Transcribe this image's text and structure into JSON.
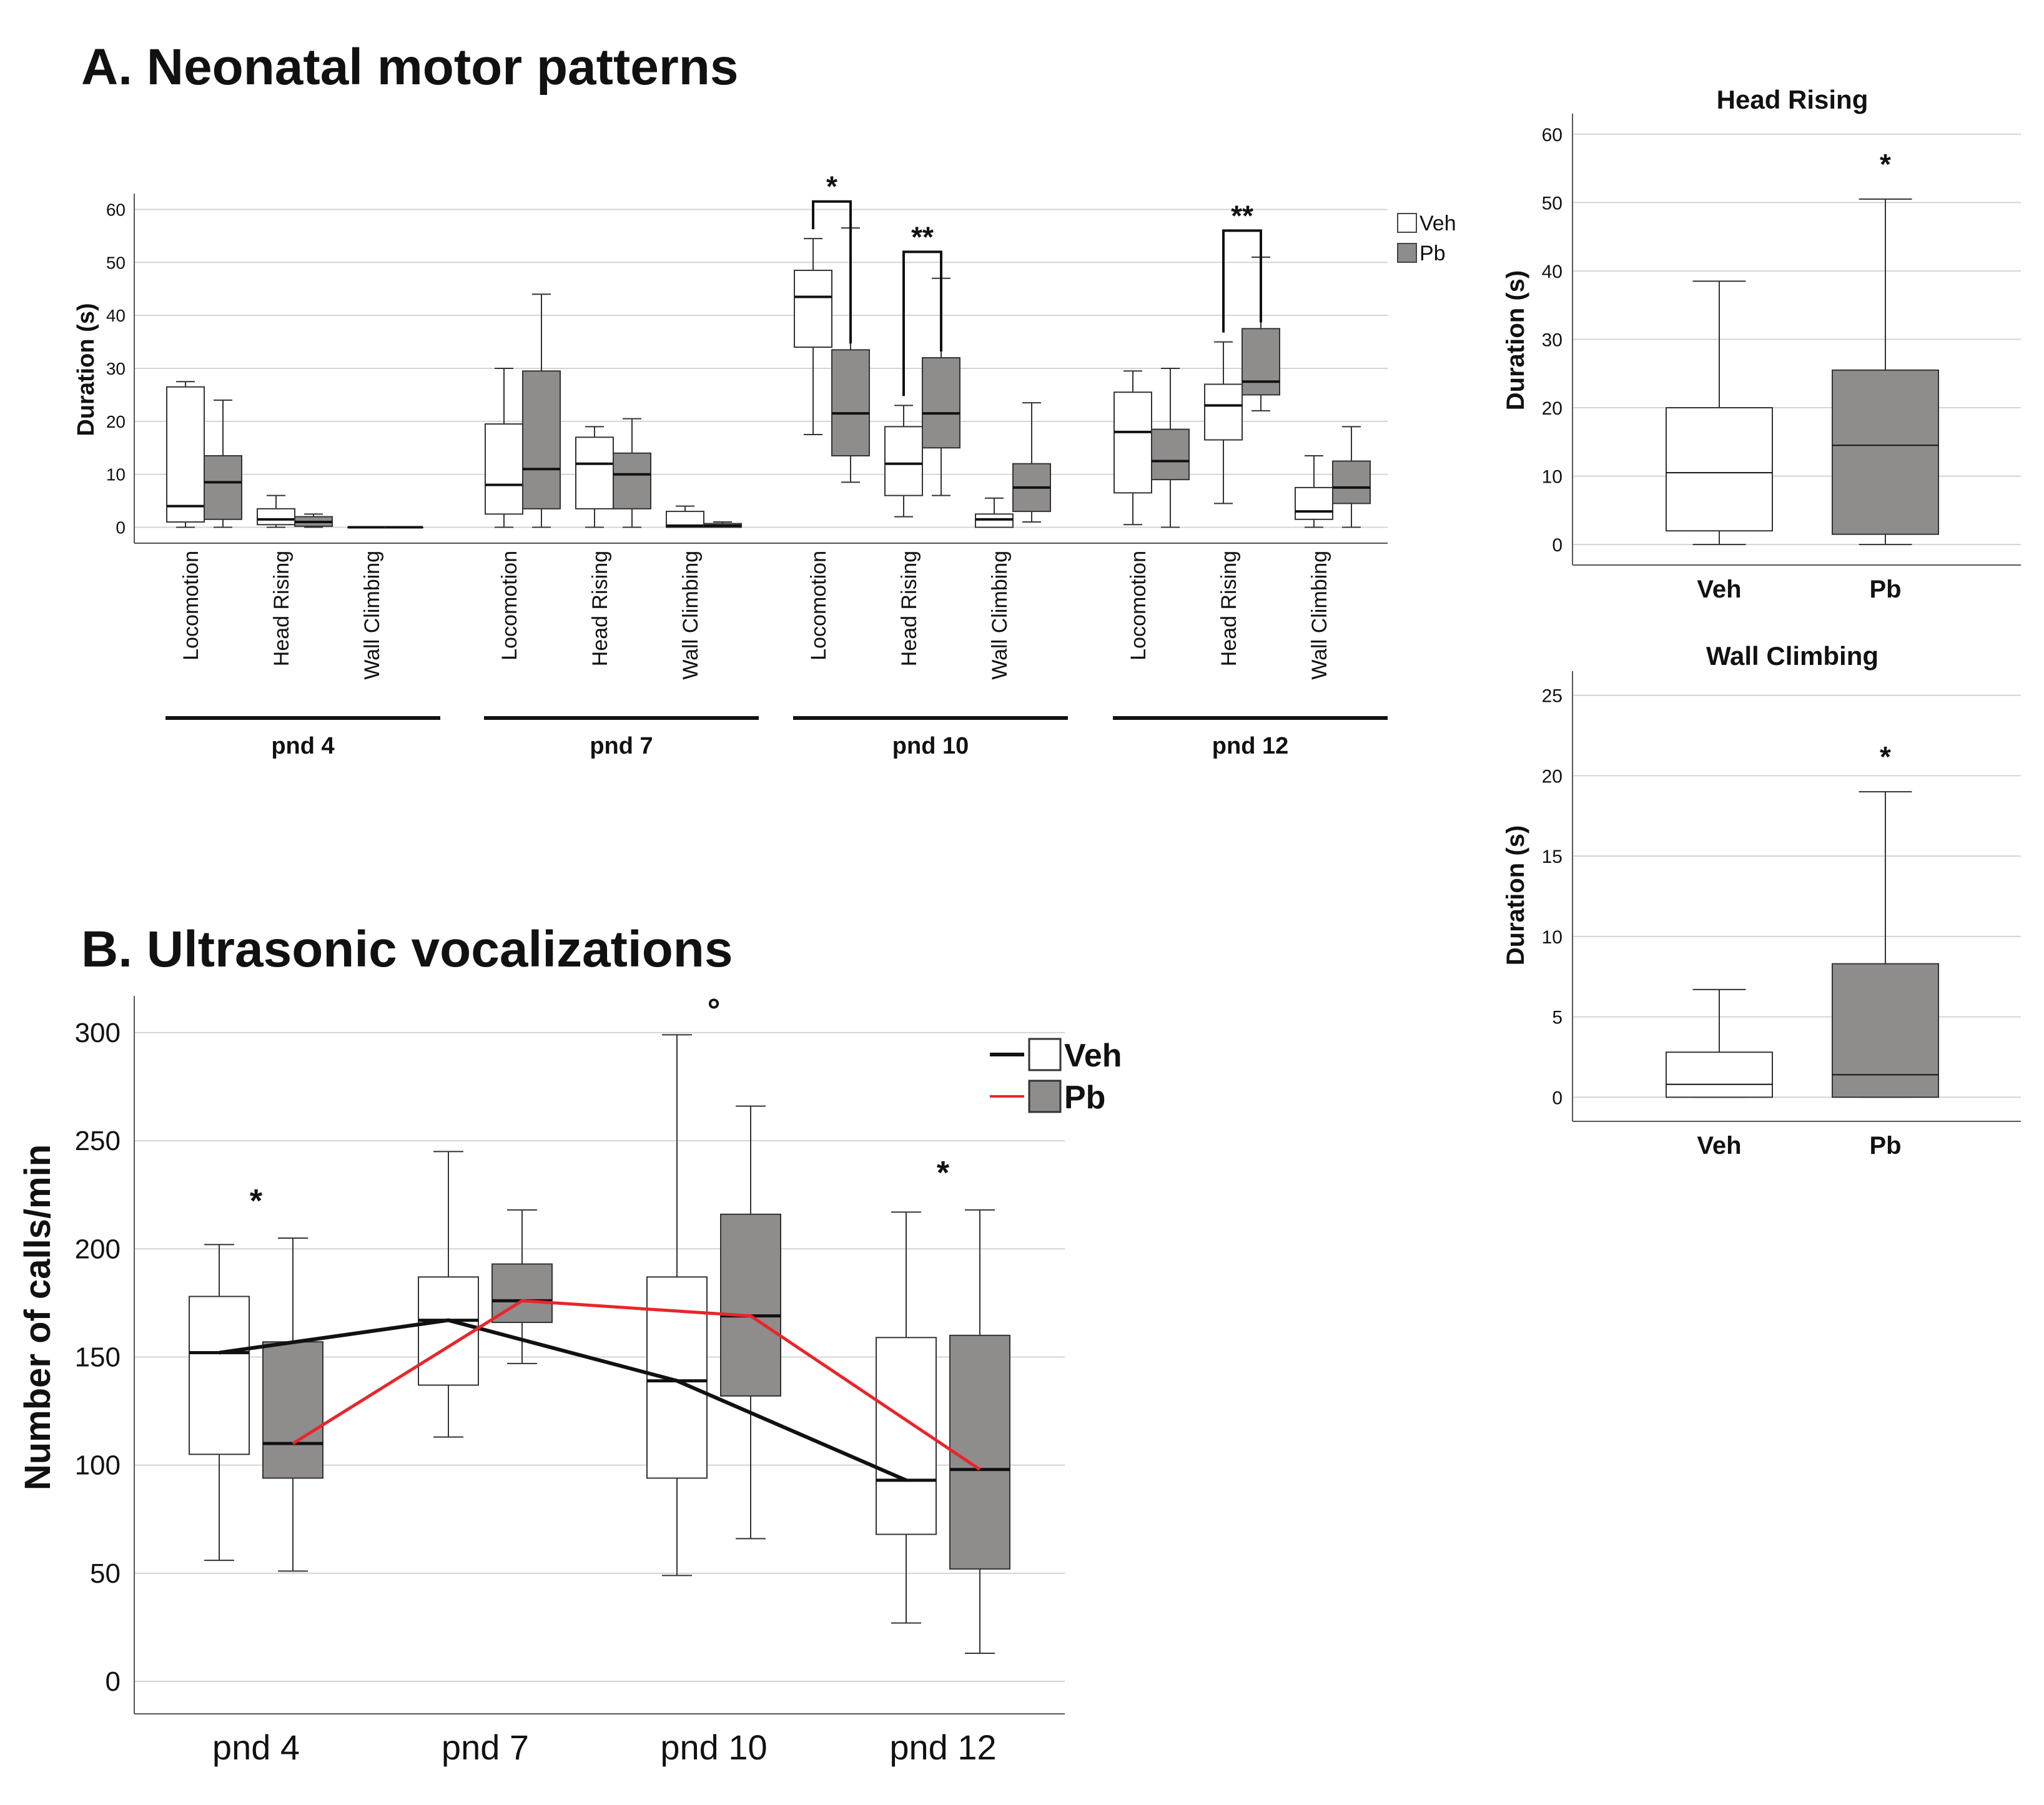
{
  "chart_data": [
    {
      "id": "panelA",
      "type": "boxplot",
      "title": "A. Neonatal motor patterns",
      "ylabel": "Duration (s)",
      "ylim": [
        -3,
        63
      ],
      "yticks": [
        0,
        10,
        20,
        30,
        40,
        50,
        60
      ],
      "legend": {
        "position": "top-right",
        "entries": [
          "Veh",
          "Pb"
        ]
      },
      "groups": [
        {
          "label": "pnd 4",
          "categories": [
            {
              "label": "Locomotion",
              "veh": {
                "min": 0,
                "q1": 1,
                "median": 4,
                "q3": 26.5,
                "max": 27.5
              },
              "pb": {
                "min": 0,
                "q1": 1.5,
                "median": 8.5,
                "q3": 13.5,
                "max": 24
              }
            },
            {
              "label": "Head Rising",
              "veh": {
                "min": 0,
                "q1": 0.5,
                "median": 1.5,
                "q3": 3.5,
                "max": 6
              },
              "pb": {
                "min": 0,
                "q1": 0.2,
                "median": 1,
                "q3": 2,
                "max": 2.5
              }
            },
            {
              "label": "Wall Climbing",
              "veh": {
                "min": 0,
                "q1": 0,
                "median": 0,
                "q3": 0,
                "max": 0
              },
              "pb": {
                "min": 0,
                "q1": 0,
                "median": 0,
                "q3": 0,
                "max": 0
              }
            }
          ]
        },
        {
          "label": "pnd 7",
          "categories": [
            {
              "label": "Locomotion",
              "veh": {
                "min": 0,
                "q1": 2.5,
                "median": 8,
                "q3": 19.5,
                "max": 30
              },
              "pb": {
                "min": 0,
                "q1": 3.5,
                "median": 11,
                "q3": 29.5,
                "max": 44
              }
            },
            {
              "label": "Head Rising",
              "veh": {
                "min": 0,
                "q1": 3.5,
                "median": 12,
                "q3": 17,
                "max": 19
              },
              "pb": {
                "min": 0,
                "q1": 3.5,
                "median": 10,
                "q3": 14,
                "max": 20.5
              }
            },
            {
              "label": "Wall Climbing",
              "veh": {
                "min": 0,
                "q1": 0,
                "median": 0.3,
                "q3": 3,
                "max": 4
              },
              "pb": {
                "min": 0,
                "q1": 0,
                "median": 0.3,
                "q3": 0.7,
                "max": 1
              }
            }
          ]
        },
        {
          "label": "pnd 10",
          "categories": [
            {
              "label": "Locomotion",
              "veh": {
                "min": 17.5,
                "q1": 34,
                "median": 43.5,
                "q3": 48.5,
                "max": 54.5
              },
              "pb": {
                "min": 8.5,
                "q1": 13.5,
                "median": 21.5,
                "q3": 33.5,
                "max": 56.5
              }
            },
            {
              "label": "Head Rising",
              "veh": {
                "min": 2,
                "q1": 6,
                "median": 12,
                "q3": 19,
                "max": 23
              },
              "pb": {
                "min": 6,
                "q1": 15,
                "median": 21.5,
                "q3": 32,
                "max": 47
              }
            },
            {
              "label": "Wall Climbing",
              "veh": {
                "min": 0,
                "q1": 0,
                "median": 1.5,
                "q3": 2.5,
                "max": 5.5
              },
              "pb": {
                "min": 1,
                "q1": 3,
                "median": 7.5,
                "q3": 12,
                "max": 23.5
              }
            }
          ]
        },
        {
          "label": "pnd 12",
          "categories": [
            {
              "label": "Locomotion",
              "veh": {
                "min": 0.5,
                "q1": 6.5,
                "median": 18,
                "q3": 25.5,
                "max": 29.5
              },
              "pb": {
                "min": 0,
                "q1": 9,
                "median": 12.5,
                "q3": 18.5,
                "max": 30
              }
            },
            {
              "label": "Head Rising",
              "veh": {
                "min": 4.5,
                "q1": 16.5,
                "median": 23,
                "q3": 27,
                "max": 35
              },
              "pb": {
                "min": 22,
                "q1": 25,
                "median": 27.5,
                "q3": 37.5,
                "max": 51
              }
            },
            {
              "label": "Wall Climbing",
              "veh": {
                "min": 0,
                "q1": 1.5,
                "median": 3,
                "q3": 7.5,
                "max": 13.5
              },
              "pb": {
                "min": 0,
                "q1": 4.5,
                "median": 7.5,
                "q3": 12.5,
                "max": 19
              }
            }
          ]
        }
      ],
      "annotations": [
        {
          "text": "*",
          "group": 2,
          "category": 0
        },
        {
          "text": "**",
          "group": 2,
          "category": 1
        },
        {
          "text": "**",
          "group": 3,
          "category": 1
        }
      ]
    },
    {
      "id": "headRising",
      "type": "boxplot",
      "title": "Head Rising",
      "ylabel": "Duration (s)",
      "ylim": [
        -3,
        63
      ],
      "yticks": [
        0,
        10,
        20,
        30,
        40,
        50,
        60
      ],
      "categories": [
        "Veh",
        "Pb"
      ],
      "boxes": [
        {
          "min": 0,
          "q1": 2,
          "median": 10.5,
          "q3": 20,
          "max": 38.5
        },
        {
          "min": 0,
          "q1": 1.5,
          "median": 14.5,
          "q3": 25.5,
          "max": 50.5
        }
      ],
      "annotations": [
        {
          "text": "*",
          "category": 1
        }
      ]
    },
    {
      "id": "wallClimbing",
      "type": "boxplot",
      "title": "Wall Climbing",
      "ylabel": "Duration (s)",
      "ylim": [
        -1.5,
        26.5
      ],
      "yticks": [
        0,
        5,
        10,
        15,
        20,
        25
      ],
      "categories": [
        "Veh",
        "Pb"
      ],
      "boxes": [
        {
          "min": 0,
          "q1": 0,
          "median": 0.8,
          "q3": 2.8,
          "max": 6.7
        },
        {
          "min": 0,
          "q1": 0,
          "median": 1.4,
          "q3": 8.3,
          "max": 19
        }
      ],
      "annotations": [
        {
          "text": "*",
          "category": 1
        }
      ]
    },
    {
      "id": "panelB",
      "type": "boxplot",
      "title": "B. Ultrasonic vocalizations",
      "ylabel": "Number of calls/min",
      "ylim": [
        -15,
        317
      ],
      "yticks": [
        0,
        50,
        100,
        150,
        200,
        250,
        300
      ],
      "categories": [
        "pnd 4",
        "pnd 7",
        "pnd 10",
        "pnd 12"
      ],
      "legend": {
        "position": "top-right",
        "entries": [
          "Veh",
          "Pb"
        ],
        "line_colors": [
          "#111111",
          "#e8262b"
        ]
      },
      "veh": [
        {
          "min": 56,
          "q1": 105,
          "median": 152,
          "q3": 178,
          "max": 202
        },
        {
          "min": 113,
          "q1": 137,
          "median": 167,
          "q3": 187,
          "max": 245
        },
        {
          "min": 49,
          "q1": 94,
          "median": 139,
          "q3": 187,
          "max": 299
        },
        {
          "min": 27,
          "q1": 68,
          "median": 93,
          "q3": 159,
          "max": 217
        }
      ],
      "pb": [
        {
          "min": 51,
          "q1": 94,
          "median": 110,
          "q3": 157,
          "max": 205
        },
        {
          "min": 147,
          "q1": 166,
          "median": 176,
          "q3": 193,
          "max": 218
        },
        {
          "min": 66,
          "q1": 132,
          "median": 169,
          "q3": 216,
          "max": 266
        },
        {
          "min": 13,
          "q1": 52,
          "median": 98,
          "q3": 160,
          "max": 218
        }
      ],
      "annotations": [
        {
          "text": "*",
          "category": 0
        },
        {
          "text": "°",
          "category": 2
        },
        {
          "text": "*",
          "category": 3
        }
      ]
    }
  ],
  "colors": {
    "veh_fill": "#ffffff",
    "pb_fill": "#8f8c8c",
    "veh_line": "#111111",
    "pb_line": "#e8262b",
    "grid": "#d4d4d4",
    "axis": "#555555"
  }
}
